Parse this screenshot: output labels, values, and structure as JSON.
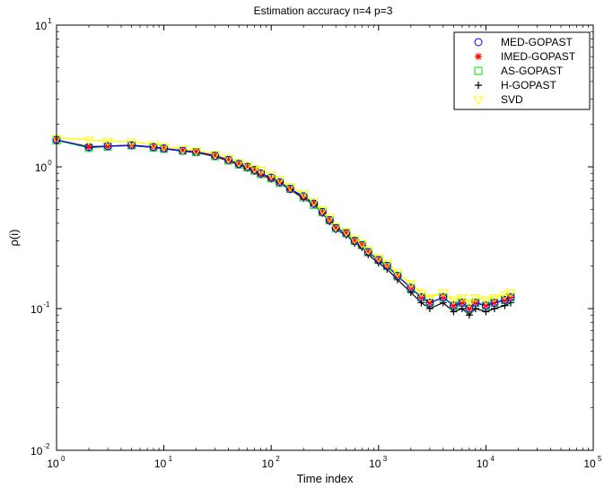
{
  "chart_data": {
    "type": "line",
    "title": "Estimation accuracy n=4 p=3",
    "xlabel": "Time index",
    "ylabel": "ρ(i)",
    "xscale": "log",
    "yscale": "log",
    "xlim": [
      1,
      100000
    ],
    "ylim": [
      0.01,
      10
    ],
    "grid": false,
    "legend_position": "top-right",
    "x_ticks": [
      {
        "base": "10",
        "exp": "0"
      },
      {
        "base": "10",
        "exp": "1"
      },
      {
        "base": "10",
        "exp": "2"
      },
      {
        "base": "10",
        "exp": "3"
      },
      {
        "base": "10",
        "exp": "4"
      },
      {
        "base": "10",
        "exp": "5"
      }
    ],
    "y_ticks": [
      {
        "base": "10",
        "exp": "-2"
      },
      {
        "base": "10",
        "exp": "-1"
      },
      {
        "base": "10",
        "exp": "0"
      },
      {
        "base": "10",
        "exp": "1"
      }
    ],
    "x": [
      1,
      2,
      3,
      5,
      8,
      10,
      15,
      20,
      30,
      40,
      50,
      60,
      70,
      80,
      100,
      120,
      150,
      200,
      250,
      300,
      350,
      400,
      500,
      600,
      700,
      800,
      1000,
      1200,
      1500,
      2000,
      2500,
      3000,
      4000,
      5000,
      6000,
      7000,
      8000,
      10000,
      12000,
      15000,
      17000
    ],
    "series": [
      {
        "name": "MED-GOPAST",
        "color": "#0000ff",
        "marker": "circle",
        "values": [
          1.55,
          1.38,
          1.4,
          1.42,
          1.38,
          1.35,
          1.3,
          1.28,
          1.2,
          1.12,
          1.05,
          1.0,
          0.95,
          0.9,
          0.84,
          0.78,
          0.7,
          0.62,
          0.55,
          0.48,
          0.42,
          0.37,
          0.34,
          0.3,
          0.28,
          0.25,
          0.22,
          0.2,
          0.17,
          0.14,
          0.12,
          0.11,
          0.12,
          0.105,
          0.11,
          0.1,
          0.11,
          0.105,
          0.11,
          0.115,
          0.12
        ]
      },
      {
        "name": "IMED-GOPAST",
        "color": "#ff0000",
        "marker": "asterisk",
        "values": [
          1.55,
          1.39,
          1.4,
          1.42,
          1.38,
          1.34,
          1.3,
          1.27,
          1.19,
          1.11,
          1.04,
          0.99,
          0.94,
          0.89,
          0.83,
          0.78,
          0.7,
          0.61,
          0.55,
          0.48,
          0.42,
          0.37,
          0.34,
          0.3,
          0.28,
          0.25,
          0.22,
          0.2,
          0.17,
          0.14,
          0.12,
          0.11,
          0.12,
          0.105,
          0.11,
          0.1,
          0.11,
          0.105,
          0.11,
          0.115,
          0.12
        ]
      },
      {
        "name": "AS-GOPAST",
        "color": "#00dd00",
        "marker": "square",
        "values": [
          1.54,
          1.36,
          1.39,
          1.42,
          1.37,
          1.34,
          1.3,
          1.27,
          1.19,
          1.11,
          1.04,
          0.99,
          0.94,
          0.89,
          0.83,
          0.77,
          0.7,
          0.61,
          0.54,
          0.48,
          0.42,
          0.37,
          0.34,
          0.3,
          0.28,
          0.25,
          0.22,
          0.2,
          0.17,
          0.14,
          0.12,
          0.11,
          0.12,
          0.105,
          0.11,
          0.1,
          0.11,
          0.105,
          0.11,
          0.115,
          0.12
        ]
      },
      {
        "name": "H-GOPAST",
        "color": "#000000",
        "marker": "plus",
        "values": [
          1.55,
          1.37,
          1.4,
          1.41,
          1.37,
          1.34,
          1.29,
          1.26,
          1.18,
          1.1,
          1.03,
          0.98,
          0.93,
          0.88,
          0.82,
          0.77,
          0.69,
          0.6,
          0.54,
          0.47,
          0.41,
          0.36,
          0.33,
          0.29,
          0.27,
          0.24,
          0.21,
          0.19,
          0.16,
          0.13,
          0.11,
          0.1,
          0.11,
          0.095,
          0.1,
          0.09,
          0.1,
          0.095,
          0.1,
          0.105,
          0.11
        ]
      },
      {
        "name": "SVD",
        "color": "#ffff00",
        "marker": "triangle-down",
        "values": [
          1.6,
          1.55,
          1.52,
          1.5,
          1.44,
          1.4,
          1.33,
          1.3,
          1.23,
          1.15,
          1.08,
          1.03,
          0.98,
          0.95,
          0.88,
          0.82,
          0.73,
          0.65,
          0.57,
          0.5,
          0.44,
          0.38,
          0.35,
          0.31,
          0.29,
          0.26,
          0.23,
          0.21,
          0.18,
          0.15,
          0.13,
          0.12,
          0.13,
          0.115,
          0.12,
          0.11,
          0.12,
          0.115,
          0.12,
          0.125,
          0.13
        ]
      }
    ]
  }
}
